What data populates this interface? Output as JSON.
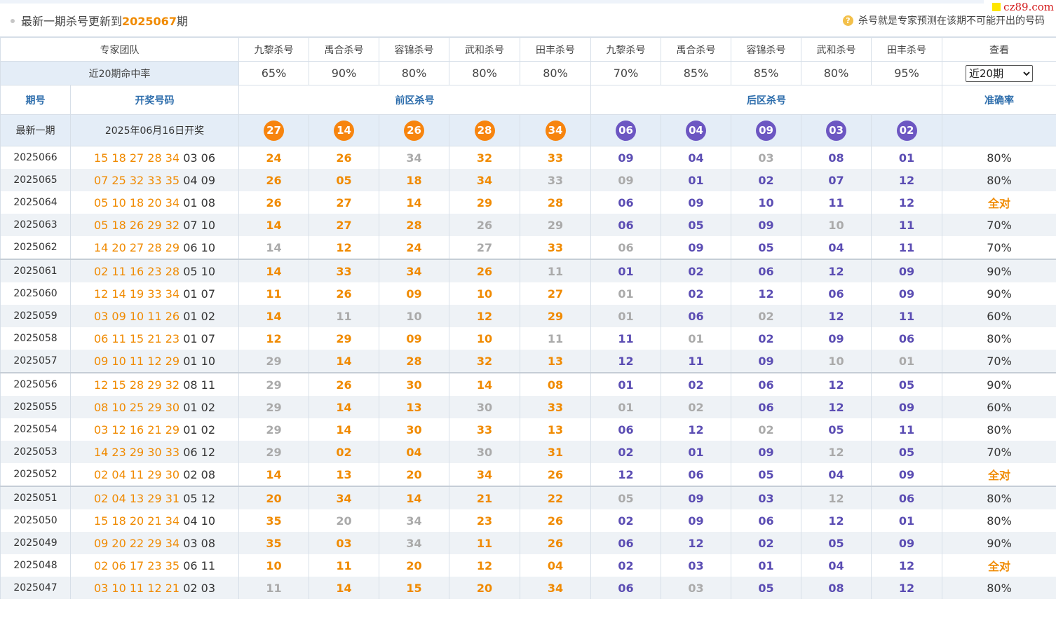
{
  "header": {
    "prefix": "最新一期杀号更新到",
    "issue": "2025067",
    "suffix": "期",
    "tip_icon": "question-icon",
    "tip": "杀号就是专家预测在该期不可能开出的号码"
  },
  "logo": {
    "text": "cz89.com"
  },
  "experts": {
    "team_label": "专家团队",
    "names": [
      "九黎杀号",
      "禹合杀号",
      "容锦杀号",
      "武和杀号",
      "田丰杀号",
      "九黎杀号",
      "禹合杀号",
      "容锦杀号",
      "武和杀号",
      "田丰杀号"
    ],
    "view_label": "查看"
  },
  "hitrate": {
    "label": "近20期命中率",
    "values": [
      "65%",
      "90%",
      "80%",
      "80%",
      "80%",
      "70%",
      "85%",
      "85%",
      "80%",
      "95%"
    ],
    "select_value": "近20期",
    "select_options": [
      "近20期"
    ]
  },
  "sections": {
    "issue": "期号",
    "draw": "开奖号码",
    "front": "前区杀号",
    "back": "后区杀号",
    "accuracy": "准确率"
  },
  "latest": {
    "label": "最新一期",
    "date": "2025年06月16日开奖",
    "front": [
      "27",
      "14",
      "26",
      "28",
      "34"
    ],
    "back": [
      "06",
      "04",
      "09",
      "03",
      "02"
    ]
  },
  "colors": {
    "front": "#f08a00",
    "back": "#5b4db3",
    "miss": "#aaaaaa",
    "header_blue": "#2e6eac"
  },
  "rows": [
    {
      "issue": "2025066",
      "front": "15 18 27 28 34",
      "back": "03 06",
      "kills": [
        "24",
        "26",
        "34",
        "32",
        "33",
        "09",
        "04",
        "03",
        "08",
        "01"
      ],
      "miss": [
        2,
        7
      ],
      "acc": "80%"
    },
    {
      "issue": "2025065",
      "front": "07 25 32 33 35",
      "back": "04 09",
      "kills": [
        "26",
        "05",
        "18",
        "34",
        "33",
        "09",
        "01",
        "02",
        "07",
        "12"
      ],
      "miss": [
        4,
        5
      ],
      "acc": "80%"
    },
    {
      "issue": "2025064",
      "front": "05 10 18 20 34",
      "back": "01 08",
      "kills": [
        "26",
        "27",
        "14",
        "29",
        "28",
        "06",
        "09",
        "10",
        "11",
        "12"
      ],
      "miss": [],
      "acc": "全对"
    },
    {
      "issue": "2025063",
      "front": "05 18 26 29 32",
      "back": "07 10",
      "kills": [
        "14",
        "27",
        "28",
        "26",
        "29",
        "06",
        "05",
        "09",
        "10",
        "11"
      ],
      "miss": [
        3,
        4,
        8
      ],
      "acc": "70%"
    },
    {
      "issue": "2025062",
      "front": "14 20 27 28 29",
      "back": "06 10",
      "kills": [
        "14",
        "12",
        "24",
        "27",
        "33",
        "06",
        "09",
        "05",
        "04",
        "11"
      ],
      "miss": [
        0,
        3,
        5
      ],
      "acc": "70%"
    },
    {
      "issue": "2025061",
      "front": "02 11 16 23 28",
      "back": "05 10",
      "kills": [
        "14",
        "33",
        "34",
        "26",
        "11",
        "01",
        "02",
        "06",
        "12",
        "09"
      ],
      "miss": [
        4
      ],
      "acc": "90%"
    },
    {
      "issue": "2025060",
      "front": "12 14 19 33 34",
      "back": "01 07",
      "kills": [
        "11",
        "26",
        "09",
        "10",
        "27",
        "01",
        "02",
        "12",
        "06",
        "09"
      ],
      "miss": [
        5
      ],
      "acc": "90%"
    },
    {
      "issue": "2025059",
      "front": "03 09 10 11 26",
      "back": "01 02",
      "kills": [
        "14",
        "11",
        "10",
        "12",
        "29",
        "01",
        "06",
        "02",
        "12",
        "11"
      ],
      "miss": [
        1,
        2,
        5,
        7
      ],
      "acc": "60%"
    },
    {
      "issue": "2025058",
      "front": "06 11 15 21 23",
      "back": "01 07",
      "kills": [
        "12",
        "29",
        "09",
        "10",
        "11",
        "11",
        "01",
        "02",
        "09",
        "06"
      ],
      "miss": [
        4,
        6
      ],
      "acc": "80%"
    },
    {
      "issue": "2025057",
      "front": "09 10 11 12 29",
      "back": "01 10",
      "kills": [
        "29",
        "14",
        "28",
        "32",
        "13",
        "12",
        "11",
        "09",
        "10",
        "01"
      ],
      "miss": [
        0,
        8,
        9
      ],
      "acc": "70%"
    },
    {
      "issue": "2025056",
      "front": "12 15 28 29 32",
      "back": "08 11",
      "kills": [
        "29",
        "26",
        "30",
        "14",
        "08",
        "01",
        "02",
        "06",
        "12",
        "05"
      ],
      "miss": [
        0
      ],
      "acc": "90%"
    },
    {
      "issue": "2025055",
      "front": "08 10 25 29 30",
      "back": "01 02",
      "kills": [
        "29",
        "14",
        "13",
        "30",
        "33",
        "01",
        "02",
        "06",
        "12",
        "09"
      ],
      "miss": [
        0,
        3,
        5,
        6
      ],
      "acc": "60%"
    },
    {
      "issue": "2025054",
      "front": "03 12 16 21 29",
      "back": "01 02",
      "kills": [
        "29",
        "14",
        "30",
        "33",
        "13",
        "06",
        "12",
        "02",
        "05",
        "11"
      ],
      "miss": [
        0,
        7
      ],
      "acc": "80%"
    },
    {
      "issue": "2025053",
      "front": "14 23 29 30 33",
      "back": "06 12",
      "kills": [
        "29",
        "02",
        "04",
        "30",
        "31",
        "02",
        "01",
        "09",
        "12",
        "05"
      ],
      "miss": [
        0,
        3,
        8
      ],
      "acc": "70%"
    },
    {
      "issue": "2025052",
      "front": "02 04 11 29 30",
      "back": "02 08",
      "kills": [
        "14",
        "13",
        "20",
        "34",
        "26",
        "12",
        "06",
        "05",
        "04",
        "09"
      ],
      "miss": [],
      "acc": "全对"
    },
    {
      "issue": "2025051",
      "front": "02 04 13 29 31",
      "back": "05 12",
      "kills": [
        "20",
        "34",
        "14",
        "21",
        "22",
        "05",
        "09",
        "03",
        "12",
        "06"
      ],
      "miss": [
        5,
        8
      ],
      "acc": "80%"
    },
    {
      "issue": "2025050",
      "front": "15 18 20 21 34",
      "back": "04 10",
      "kills": [
        "35",
        "20",
        "34",
        "23",
        "26",
        "02",
        "09",
        "06",
        "12",
        "01"
      ],
      "miss": [
        1,
        2
      ],
      "acc": "80%"
    },
    {
      "issue": "2025049",
      "front": "09 20 22 29 34",
      "back": "03 08",
      "kills": [
        "35",
        "03",
        "34",
        "11",
        "26",
        "06",
        "12",
        "02",
        "05",
        "09"
      ],
      "miss": [
        2
      ],
      "acc": "90%"
    },
    {
      "issue": "2025048",
      "front": "02 06 17 23 35",
      "back": "06 11",
      "kills": [
        "10",
        "11",
        "20",
        "12",
        "04",
        "02",
        "03",
        "01",
        "04",
        "12"
      ],
      "miss": [],
      "acc": "全对"
    },
    {
      "issue": "2025047",
      "front": "03 10 11 12 21",
      "back": "02 03",
      "kills": [
        "11",
        "14",
        "15",
        "20",
        "34",
        "06",
        "03",
        "05",
        "08",
        "12"
      ],
      "miss": [
        0,
        6
      ],
      "acc": "80%"
    }
  ]
}
